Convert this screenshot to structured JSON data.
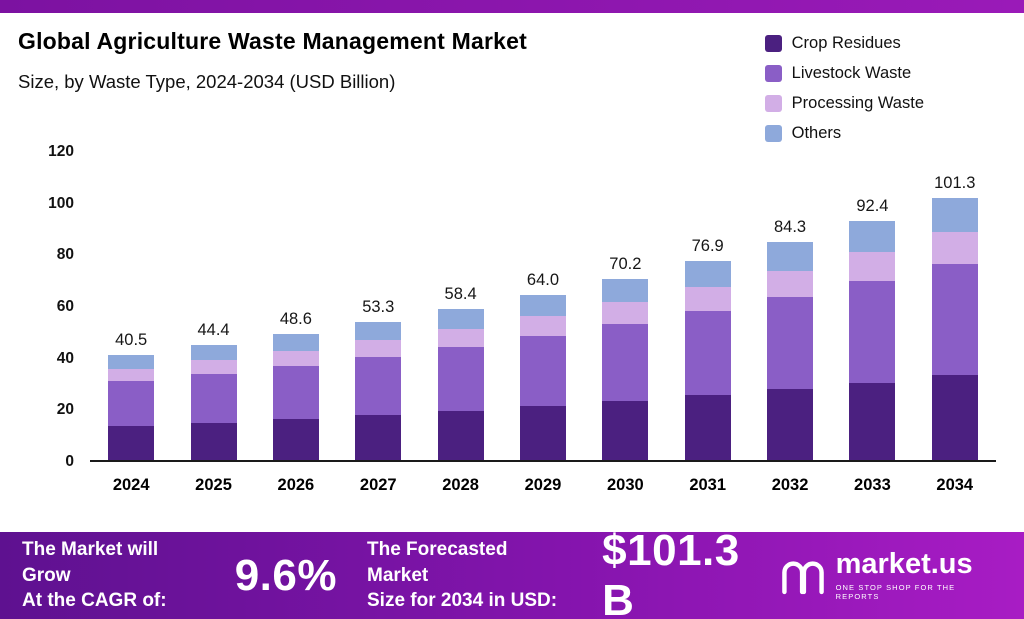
{
  "header": {
    "title": "Global Agriculture Waste Management Market",
    "subtitle": "Size, by Waste Type, 2024-2034 (USD Billion)"
  },
  "chart_data": {
    "type": "bar",
    "stacked": true,
    "title": "Global Agriculture Waste Management Market Size, by Waste Type, 2024-2034 (USD Billion)",
    "xlabel": "",
    "ylabel": "USD Billion",
    "ylim": [
      0,
      120
    ],
    "yticks": [
      0,
      20,
      40,
      60,
      80,
      100,
      120
    ],
    "grid": false,
    "legend_position": "top-right",
    "categories": [
      "2024",
      "2025",
      "2026",
      "2027",
      "2028",
      "2029",
      "2030",
      "2031",
      "2032",
      "2033",
      "2034"
    ],
    "series": [
      {
        "name": "Crop Residues",
        "color": "#4b2080",
        "values": [
          13.2,
          14.4,
          15.8,
          17.3,
          19.0,
          20.8,
          22.8,
          25.0,
          27.4,
          30.0,
          32.9
        ]
      },
      {
        "name": "Livestock Waste",
        "color": "#8a5ec6",
        "values": [
          17.2,
          18.9,
          20.7,
          22.7,
          24.8,
          27.2,
          29.8,
          32.7,
          35.8,
          39.3,
          43.1
        ]
      },
      {
        "name": "Processing Waste",
        "color": "#d2aee6",
        "values": [
          4.9,
          5.3,
          5.8,
          6.4,
          7.0,
          7.7,
          8.4,
          9.2,
          10.1,
          11.1,
          12.2
        ]
      },
      {
        "name": "Others",
        "color": "#8ea9db",
        "values": [
          5.2,
          5.8,
          6.3,
          6.9,
          7.6,
          8.3,
          9.2,
          10.0,
          11.0,
          12.0,
          13.1
        ]
      }
    ],
    "totals": [
      40.5,
      44.4,
      48.6,
      53.3,
      58.4,
      64.0,
      70.2,
      76.9,
      84.3,
      92.4,
      101.3
    ],
    "totals_display": [
      "40.5",
      "44.4",
      "48.6",
      "53.3",
      "58.4",
      "64.0",
      "70.2",
      "76.9",
      "84.3",
      "92.4",
      "101.3"
    ]
  },
  "banner": {
    "cagr_label_line1": "The Market will Grow",
    "cagr_label_line2": "At the CAGR of:",
    "cagr_value": "9.6%",
    "forecast_label_line1": "The Forecasted Market",
    "forecast_label_line2": "Size for 2034 in USD:",
    "forecast_value": "$101.3 B",
    "brand_name": "market.us",
    "brand_tagline": "ONE STOP SHOP FOR THE REPORTS"
  }
}
